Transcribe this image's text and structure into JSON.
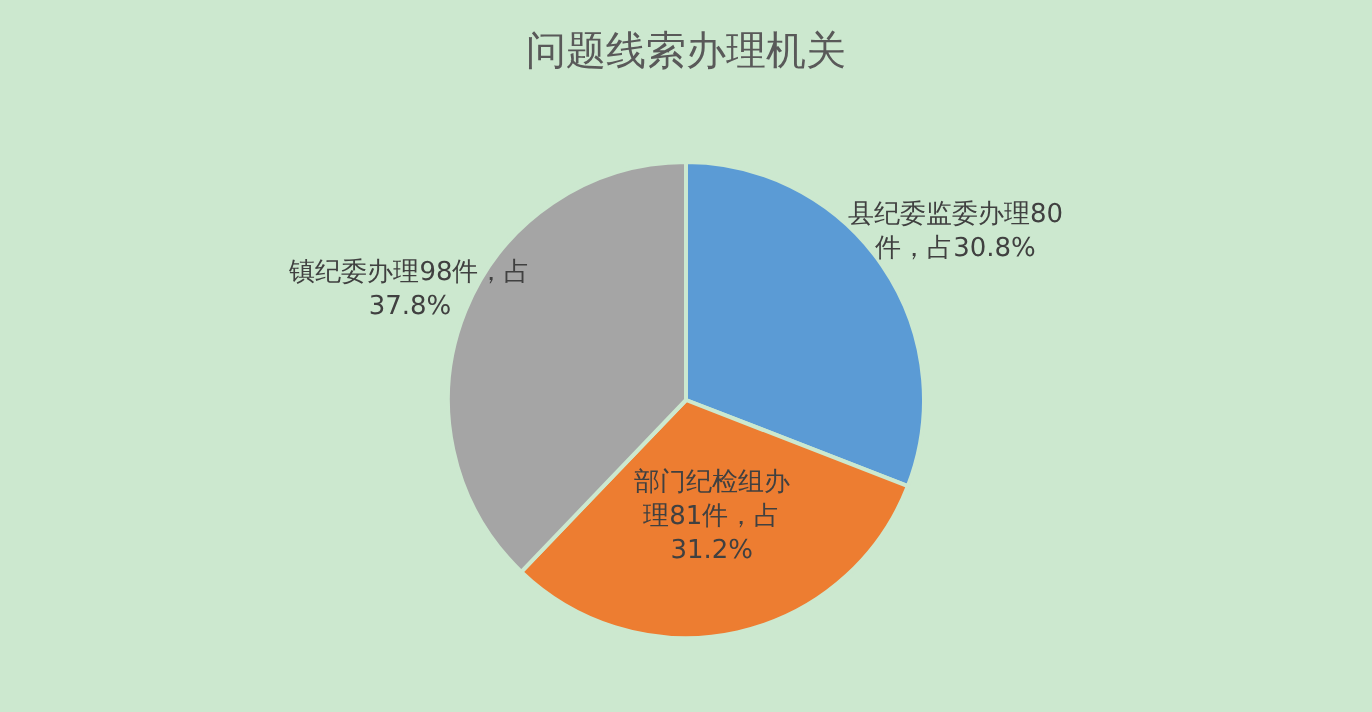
{
  "chart_data": {
    "type": "pie",
    "title": "问题线索办理机关",
    "categories": [
      "县纪委监委办理",
      "部门纪检组办理",
      "镇纪委办理"
    ],
    "values": [
      80,
      81,
      98
    ],
    "colors": [
      "#5b9bd5",
      "#ed7d31",
      "#a5a5a5"
    ],
    "value_labels": [
      "80件，占30.8%",
      "81件，占31.2%",
      "98件，占37.8%"
    ]
  }
}
